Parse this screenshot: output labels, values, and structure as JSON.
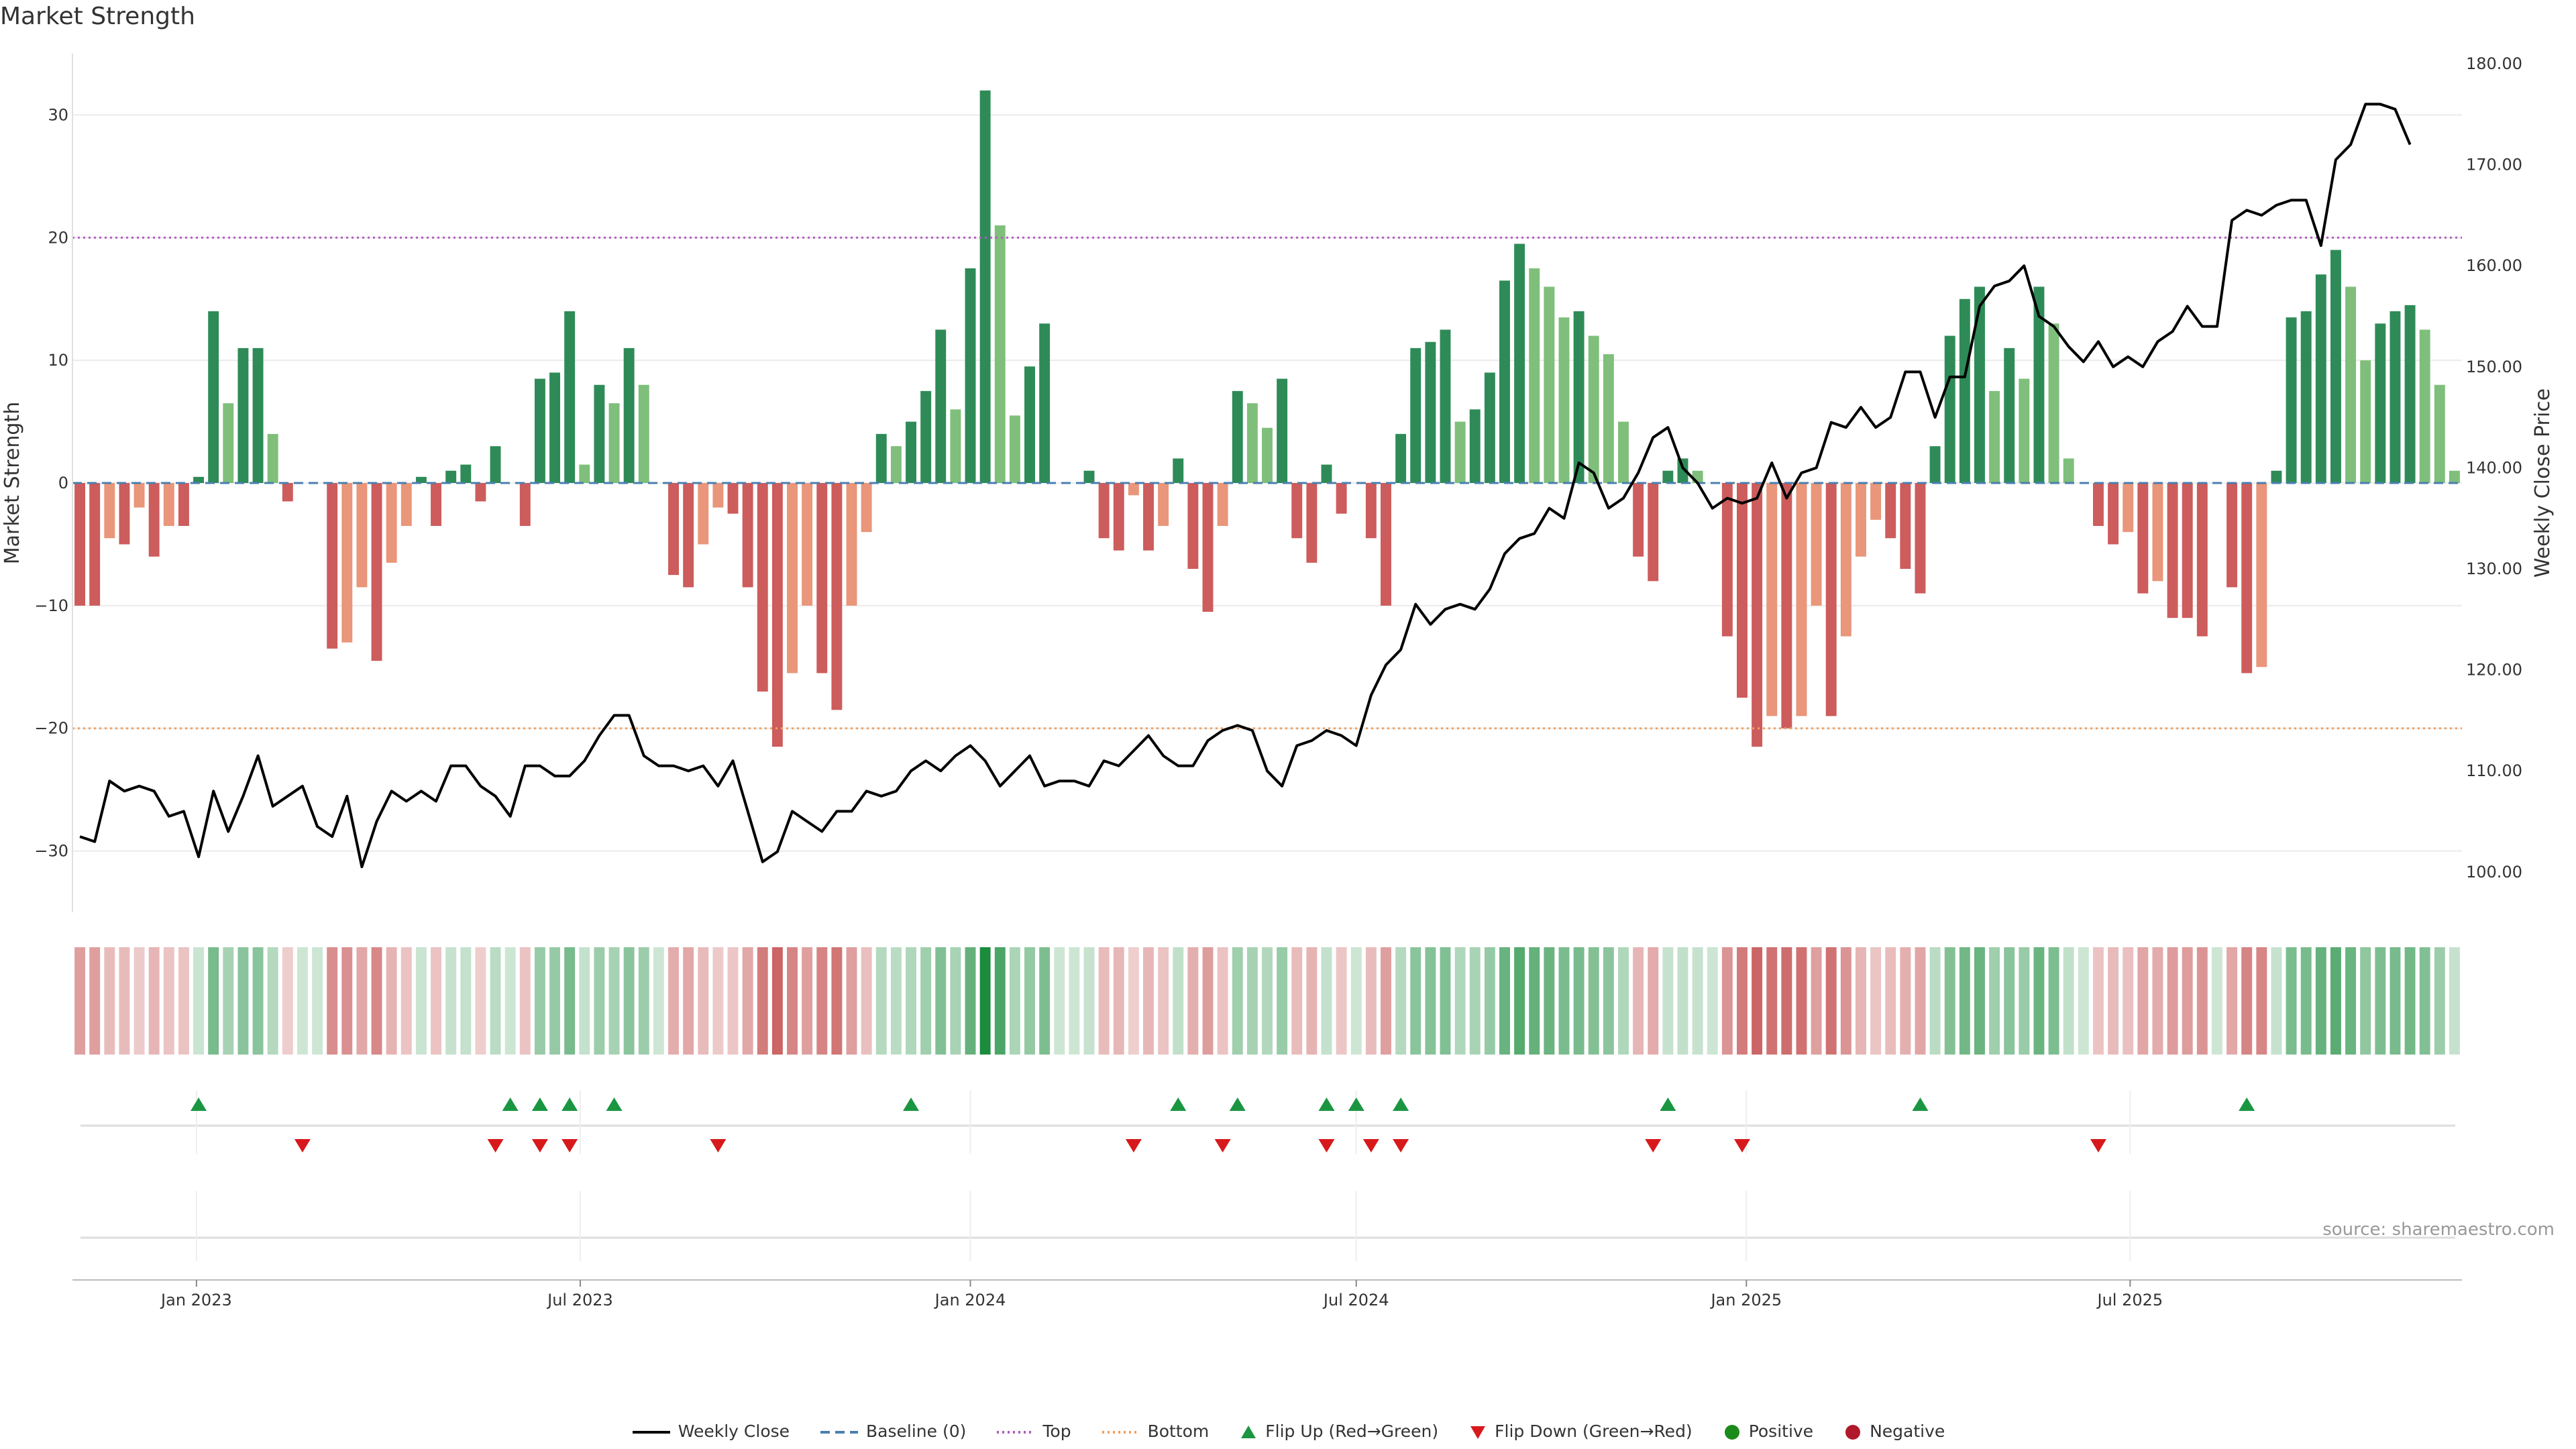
{
  "title": "Market Strength",
  "source": "source: sharemaestro.com",
  "colors": {
    "pos_dark": "#2e8b57",
    "pos_light": "#7fbf7b",
    "neg_dark": "#cd5c5c",
    "neg_light": "#e9967a",
    "price": "#000000",
    "baseline": "#4a7fb0",
    "top": "#b05cc0",
    "bottom": "#f0a060",
    "flip_up": "#1a9641",
    "flip_down": "#d7191c",
    "positive": "#1a8a1a",
    "negative": "#b2182b"
  },
  "chart_data": {
    "type": "bar",
    "start_date": "2022-11-07",
    "interval_days": 7,
    "left_axis": {
      "label": "Market Strength",
      "ylim": [
        -35,
        35
      ],
      "ticks": [
        -30,
        -20,
        -10,
        0,
        10,
        20,
        30
      ],
      "tick_labels": [
        "−30",
        "−20",
        "−10",
        "0",
        "10",
        "20",
        "30"
      ]
    },
    "right_axis": {
      "label": "Weekly Close Price",
      "ylim": [
        96,
        181
      ],
      "ticks": [
        100,
        110,
        120,
        130,
        140,
        150,
        160,
        170,
        180
      ],
      "tick_labels": [
        "100.00",
        "110.00",
        "120.00",
        "130.00",
        "140.00",
        "150.00",
        "160.00",
        "170.00",
        "180.00"
      ]
    },
    "x_ticks": [
      {
        "label": "Jan 2023",
        "date": "2023-01-01"
      },
      {
        "label": "Jul 2023",
        "date": "2023-07-01"
      },
      {
        "label": "Jan 2024",
        "date": "2024-01-01"
      },
      {
        "label": "Jul 2024",
        "date": "2024-07-01"
      },
      {
        "label": "Jan 2025",
        "date": "2025-01-01"
      },
      {
        "label": "Jul 2025",
        "date": "2025-07-01"
      }
    ],
    "thresholds": {
      "top": 20,
      "bottom": -20,
      "baseline": 0
    },
    "strength": [
      -10,
      -10,
      -4.5,
      -5,
      -2,
      -6,
      -3.5,
      -3.5,
      0.5,
      14,
      6.5,
      11,
      11,
      4,
      -1.5,
      0,
      0,
      -13.5,
      -13,
      -8.5,
      -14.5,
      -6.5,
      -3.5,
      0.5,
      -3.5,
      1,
      1.5,
      -1.5,
      3,
      0,
      -3.5,
      8.5,
      9,
      14,
      1.5,
      8,
      6.5,
      11,
      8,
      0,
      -7.5,
      -8.5,
      -5,
      -2,
      -2.5,
      -8.5,
      -17,
      -21.5,
      -15.5,
      -10,
      -15.5,
      -18.5,
      -10,
      -4,
      4,
      3,
      5,
      7.5,
      12.5,
      6,
      17.5,
      32,
      21,
      5.5,
      9.5,
      13,
      0,
      0,
      1,
      -4.5,
      -5.5,
      -1,
      -5.5,
      -3.5,
      2,
      -7,
      -10.5,
      -3.5,
      7.5,
      6.5,
      4.5,
      8.5,
      -4.5,
      -6.5,
      1.5,
      -2.5,
      0,
      -4.5,
      -10,
      4,
      11,
      11.5,
      12.5,
      5,
      6,
      9,
      16.5,
      19.5,
      17.5,
      16,
      13.5,
      14,
      12,
      10.5,
      5,
      -6,
      -8,
      1,
      2,
      1,
      0,
      -12.5,
      -17.5,
      -21.5,
      -19,
      -20,
      -19,
      -10,
      -19,
      -12.5,
      -6,
      -3,
      -4.5,
      -7,
      -9,
      3,
      12,
      15,
      16,
      7.5,
      11,
      8.5,
      16,
      13,
      2,
      0,
      -3.5,
      -5,
      -4,
      -9,
      -8,
      -11,
      -11,
      -12.5,
      0,
      -8.5,
      -15.5,
      -15,
      1,
      13.5,
      14,
      17,
      19,
      16,
      10,
      13,
      14,
      14.5,
      12.5,
      8,
      1
    ],
    "price": [
      103.5,
      103,
      109,
      108,
      108.5,
      108,
      105.5,
      106,
      101.5,
      108,
      104,
      107.5,
      111.5,
      106.5,
      107.5,
      108.5,
      104.5,
      103.5,
      107.5,
      100.5,
      105,
      108,
      107,
      108,
      107,
      110.5,
      110.5,
      108.5,
      107.5,
      105.5,
      110.5,
      110.5,
      109.5,
      109.5,
      111,
      113.5,
      115.5,
      115.5,
      111.5,
      110.5,
      110.5,
      110,
      110.5,
      108.5,
      111,
      106,
      101,
      102,
      106,
      105,
      104,
      106,
      106,
      108,
      107.5,
      108,
      110,
      111,
      110,
      111.5,
      112.5,
      111,
      108.5,
      110,
      111.5,
      108.5,
      109,
      109,
      108.5,
      111,
      110.5,
      112,
      113.5,
      111.5,
      110.5,
      110.5,
      113,
      114,
      114.5,
      114,
      110,
      108.5,
      112.5,
      113,
      114,
      113.5,
      112.5,
      117.5,
      120.5,
      122,
      126.5,
      124.5,
      126,
      126.5,
      126,
      128,
      131.5,
      133,
      133.5,
      136,
      135,
      140.5,
      139.5,
      136,
      137,
      139.5,
      143,
      144,
      140,
      138.5,
      136,
      137,
      136.5,
      137,
      140.5,
      137,
      139.5,
      140,
      144.5,
      144,
      146,
      144,
      145,
      149.5,
      149.5,
      145,
      149,
      149,
      156,
      158,
      158.5,
      160,
      155,
      154,
      152,
      150.5,
      152.5,
      150,
      151,
      150,
      152.5,
      153.5,
      156,
      154,
      154,
      164.5,
      165.5,
      165,
      166,
      166.5,
      166.5,
      162,
      170.5,
      172,
      176,
      176,
      175.5,
      172
    ],
    "flips_up": [
      "2023-01-02",
      "2023-05-29",
      "2023-06-12",
      "2023-06-26",
      "2023-07-17",
      "2023-12-04",
      "2024-04-08",
      "2024-05-06",
      "2024-06-17",
      "2024-07-01",
      "2024-07-22",
      "2024-11-25",
      "2025-03-24",
      "2025-08-25"
    ],
    "flips_down": [
      "2023-02-20",
      "2023-05-22",
      "2023-06-12",
      "2023-06-26",
      "2023-09-04",
      "2024-03-18",
      "2024-04-29",
      "2024-06-17",
      "2024-07-08",
      "2024-07-22",
      "2024-11-18",
      "2024-12-30",
      "2025-06-16"
    ]
  },
  "legend": [
    {
      "type": "line",
      "color": "#000000",
      "dash": "",
      "label": "Weekly Close"
    },
    {
      "type": "line",
      "color": "#4a7fb0",
      "dash": "14 8",
      "label": "Baseline (0)"
    },
    {
      "type": "line",
      "color": "#b05cc0",
      "dash": "3 5",
      "label": "Top"
    },
    {
      "type": "line",
      "color": "#f0a060",
      "dash": "3 5",
      "label": "Bottom"
    },
    {
      "type": "tri-up",
      "color": "#1a9641",
      "label": "Flip Up (Red→Green)"
    },
    {
      "type": "tri-down",
      "color": "#d7191c",
      "label": "Flip Down (Green→Red)"
    },
    {
      "type": "dot",
      "color": "#1a8a1a",
      "label": "Positive"
    },
    {
      "type": "dot",
      "color": "#b2182b",
      "label": "Negative"
    }
  ]
}
